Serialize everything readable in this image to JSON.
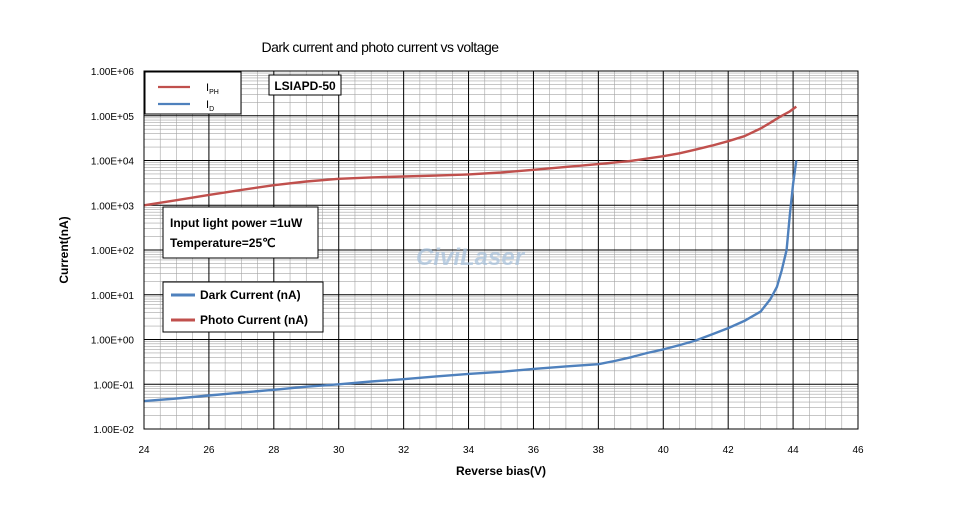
{
  "chart_data": {
    "type": "line",
    "title": "Dark current and photo current vs voltage",
    "xlabel": "Reverse bias(V)",
    "ylabel": "Current(nA)",
    "xlim": [
      24,
      46
    ],
    "ylim": [
      0.01,
      1000000
    ],
    "y_scale": "log",
    "grid": true,
    "x_ticks": [
      "24",
      "26",
      "28",
      "30",
      "32",
      "34",
      "36",
      "38",
      "40",
      "42",
      "44",
      "46"
    ],
    "y_ticks": [
      "1.00E-02",
      "1.00E-01",
      "1.00E+00",
      "1.00E+01",
      "1.00E+02",
      "1.00E+03",
      "1.00E+04",
      "1.00E+05",
      "1.00E+06"
    ],
    "series": [
      {
        "name": "Photo Current (nA)",
        "color": "#c0504d",
        "x": [
          24,
          25,
          26,
          27,
          28,
          29,
          30,
          31,
          32,
          33,
          34,
          35,
          36,
          37,
          38,
          39,
          40,
          40.5,
          41,
          41.5,
          42,
          42.5,
          43,
          43.3,
          43.6,
          43.9,
          44.1
        ],
        "y": [
          1000,
          1300,
          1700,
          2200,
          2800,
          3400,
          3900,
          4200,
          4400,
          4600,
          4900,
          5400,
          6200,
          7200,
          8300,
          9800,
          12500,
          14500,
          17500,
          21500,
          27000,
          35000,
          52000,
          70000,
          95000,
          125000,
          160000
        ]
      },
      {
        "name": "Dark Current (nA)",
        "color": "#4f81bd",
        "x": [
          24,
          25,
          26,
          27,
          28,
          29,
          30,
          31,
          32,
          33,
          34,
          35,
          36,
          37,
          38,
          38.5,
          39,
          39.5,
          40,
          40.5,
          41,
          41.5,
          42,
          42.5,
          43,
          43.3,
          43.5,
          43.65,
          43.8,
          43.9,
          44.0,
          44.1
        ],
        "y": [
          0.042,
          0.048,
          0.056,
          0.065,
          0.075,
          0.088,
          0.1,
          0.115,
          0.13,
          0.15,
          0.17,
          0.19,
          0.22,
          0.25,
          0.28,
          0.33,
          0.4,
          0.5,
          0.6,
          0.75,
          0.95,
          1.3,
          1.8,
          2.6,
          4.2,
          8,
          15,
          35,
          100,
          600,
          3000,
          10000
        ]
      }
    ],
    "legend_top": {
      "position": "top-left",
      "entries": [
        {
          "main": "I",
          "sub": "PH",
          "color": "#c0504d"
        },
        {
          "main": "I",
          "sub": "D",
          "color": "#4f81bd"
        }
      ]
    },
    "legend_inner": {
      "position": "center-left",
      "entries": [
        {
          "label": "Dark Current (nA)",
          "color": "#4f81bd"
        },
        {
          "label": "Photo Current (nA)",
          "color": "#c0504d"
        }
      ]
    },
    "annotations": {
      "model": "LSIAPD-50",
      "conditions": [
        "Input light power =1uW",
        "Temperature=25℃"
      ],
      "watermark": "CiviLaser"
    }
  }
}
